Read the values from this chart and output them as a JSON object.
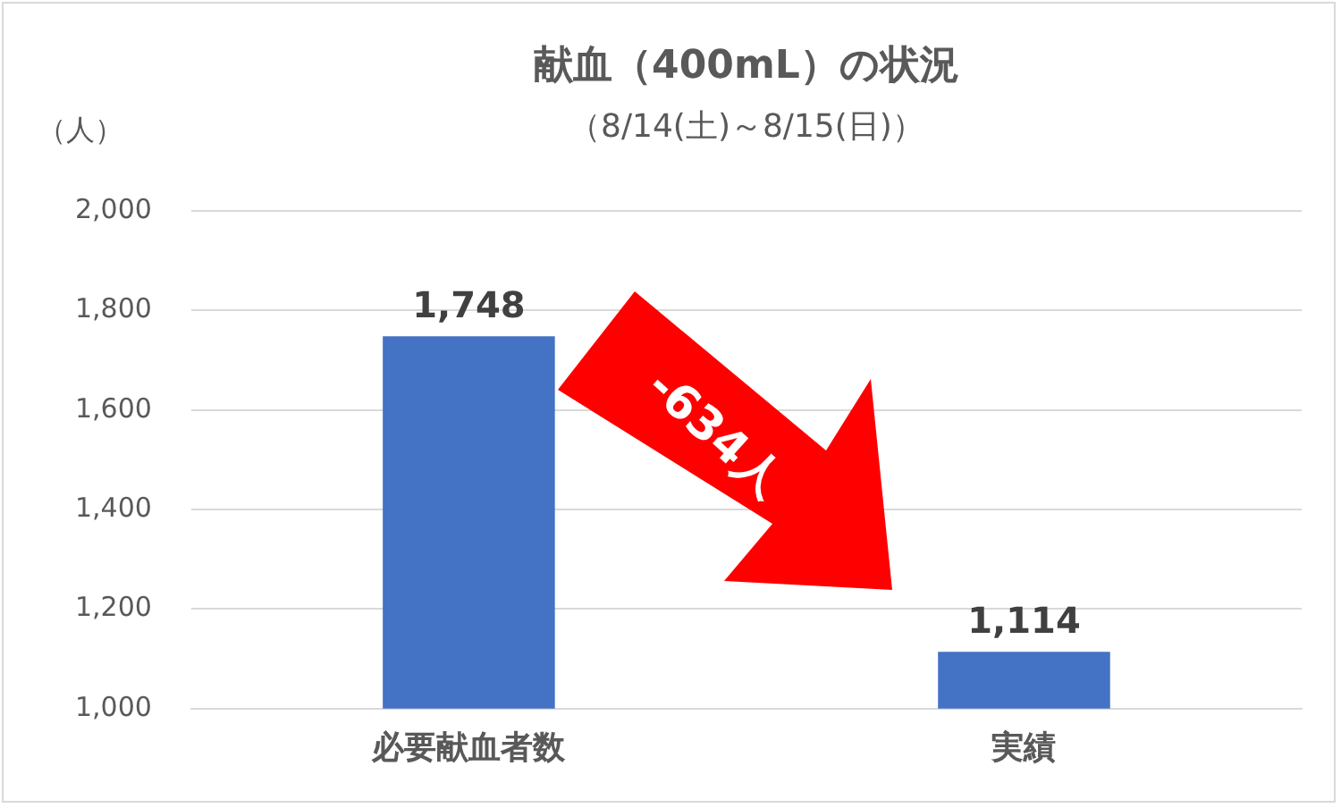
{
  "chart_data": {
    "type": "bar",
    "title": "献血（400mL）の状況",
    "subtitle": "（8/14(土)～8/15(日)）",
    "ylabel": "（人）",
    "categories": [
      "必要献血者数",
      "実績"
    ],
    "values": [
      1748,
      1114
    ],
    "value_labels": [
      "1,748",
      "1,114"
    ],
    "color": "#4472c4",
    "ylim": [
      1000,
      2000
    ],
    "yticks": [
      {
        "value": 1000,
        "label": "1,000"
      },
      {
        "value": 1200,
        "label": "1,200"
      },
      {
        "value": 1400,
        "label": "1,400"
      },
      {
        "value": 1600,
        "label": "1,600"
      },
      {
        "value": 1800,
        "label": "1,800"
      },
      {
        "value": 2000,
        "label": "2,000"
      }
    ],
    "grid": "y",
    "annotations": [
      "-634人"
    ]
  }
}
